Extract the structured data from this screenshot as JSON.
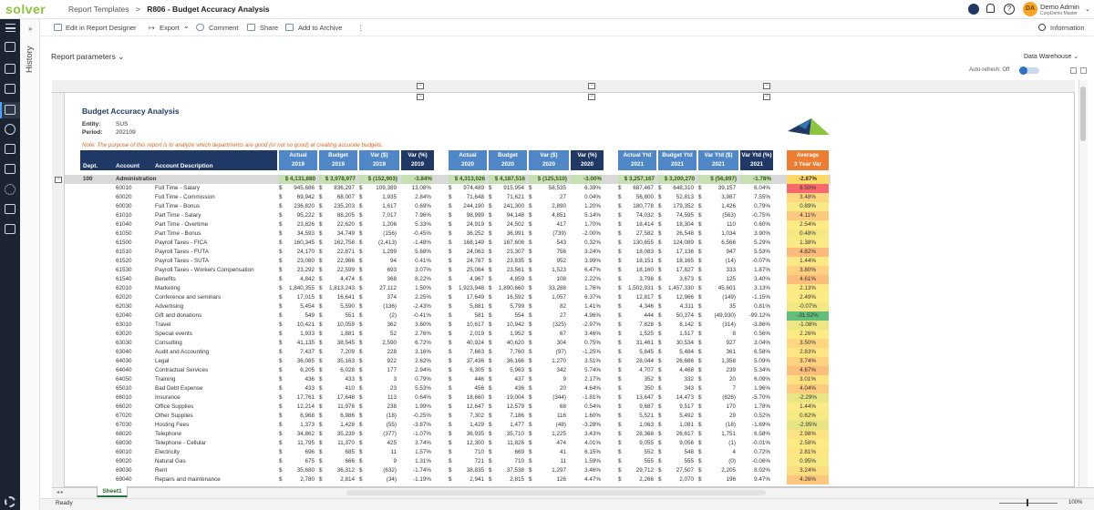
{
  "app": {
    "logo": "solver",
    "crumb_section": "Report Templates",
    "crumb_sep": ">",
    "crumb_title": "R806 - Budget Accuracy Analysis"
  },
  "user": {
    "initials": "DA",
    "name": "Demo Admin",
    "org": "CorpDemo Master"
  },
  "history_label": "History",
  "toolbar": {
    "edit": "Edit in Report Designer",
    "export": "Export",
    "comment": "Comment",
    "share": "Share",
    "archive": "Add to Archive",
    "more": "⋮",
    "information": "Information"
  },
  "params": {
    "label": "Report parameters",
    "datasource": "Data Warehouse",
    "autorefresh": "Auto-refresh: Off"
  },
  "report": {
    "title": "Budget Accuracy Analysis",
    "entity_label": "Entity:",
    "entity": "SUS",
    "period_label": "Period:",
    "period": "202109",
    "note": "Note: The purpose of this report is to analyze which departments are good (or not so good) at creating accurate budgets.",
    "col_dept": "Dept.",
    "col_account": "Account",
    "col_desc": "Account Description",
    "headers": [
      {
        "l1": "Actual",
        "l2": "2019",
        "style": "hl"
      },
      {
        "l1": "Budget",
        "l2": "2019",
        "style": "hl"
      },
      {
        "l1": "Var ($)",
        "l2": "2019",
        "style": "hl"
      },
      {
        "l1": "Var (%)",
        "l2": "2019",
        "style": "hd"
      },
      {
        "l1": "Actual",
        "l2": "2020",
        "style": "hl"
      },
      {
        "l1": "Budget",
        "l2": "2020",
        "style": "hl"
      },
      {
        "l1": "Var ($)",
        "l2": "2020",
        "style": "hl"
      },
      {
        "l1": "Var (%)",
        "l2": "2020",
        "style": "hd"
      },
      {
        "l1": "Actual Ytd",
        "l2": "2021",
        "style": "hl"
      },
      {
        "l1": "Budget Ytd",
        "l2": "2021",
        "style": "hl"
      },
      {
        "l1": "Var Ytd ($)",
        "l2": "2021",
        "style": "hl"
      },
      {
        "l1": "Var Ytd (%)",
        "l2": "2021",
        "style": "hd"
      },
      {
        "l1": "Average",
        "l2": "3 Year Var",
        "style": "ho"
      }
    ],
    "total": {
      "dept": "100",
      "name": "Administration",
      "v": [
        "$ 4,131,880",
        "$ 3,978,977",
        "$ (152,903)",
        "-3.84%",
        "$ 4,313,026",
        "$ 4,187,516",
        "$ (125,510)",
        "-3.00%",
        "$ 3,257,167",
        "$ 3,200,270",
        "$ (56,897)",
        "-1.78%"
      ],
      "avg": "-2.87%"
    },
    "rows": [
      [
        "60010",
        "Full Time - Salary",
        "945,686",
        "836,297",
        "109,389",
        "13.08%",
        "974,489",
        "915,954",
        "58,535",
        "6.39%",
        "687,467",
        "648,310",
        "39,157",
        "6.04%",
        "8.50%"
      ],
      [
        "60020",
        "Full Time - Commission",
        "69,942",
        "68,007",
        "1,935",
        "2.84%",
        "71,648",
        "71,621",
        "27",
        "0.04%",
        "56,800",
        "52,813",
        "3,987",
        "7.55%",
        "3.48%"
      ],
      [
        "60030",
        "Full Time - Bonus",
        "236,820",
        "235,203",
        "1,617",
        "0.69%",
        "244,190",
        "241,300",
        "2,890",
        "1.20%",
        "180,778",
        "179,352",
        "1,426",
        "0.79%",
        "0.89%"
      ],
      [
        "61010",
        "Part Time - Salary",
        "95,222",
        "88,205",
        "7,017",
        "7.96%",
        "98,999",
        "94,148",
        "4,851",
        "5.14%",
        "74,032",
        "74,595",
        "(563)",
        "-0.75%",
        "4.11%"
      ],
      [
        "61040",
        "Part Time - Overtime",
        "23,826",
        "22,620",
        "1,206",
        "5.33%",
        "24,919",
        "24,502",
        "417",
        "1.70%",
        "18,414",
        "18,304",
        "110",
        "0.60%",
        "2.54%"
      ],
      [
        "61050",
        "Part Time - Bonus",
        "34,593",
        "34,749",
        "(156)",
        "-0.45%",
        "36,252",
        "36,991",
        "(739)",
        "-2.00%",
        "27,582",
        "26,548",
        "1,034",
        "3.90%",
        "0.48%"
      ],
      [
        "61500",
        "Payroll Taxes - FICA",
        "160,345",
        "162,758",
        "(2,413)",
        "-1.48%",
        "168,149",
        "167,606",
        "543",
        "0.32%",
        "130,655",
        "124,089",
        "6,566",
        "5.29%",
        "1.38%"
      ],
      [
        "61510",
        "Payroll Taxes - FUTA",
        "24,170",
        "22,871",
        "1,299",
        "5.68%",
        "24,063",
        "23,307",
        "756",
        "3.24%",
        "18,083",
        "17,136",
        "947",
        "5.53%",
        "4.82%"
      ],
      [
        "61520",
        "Payroll Taxes - SUTA",
        "23,080",
        "22,986",
        "94",
        "0.41%",
        "24,787",
        "23,835",
        "952",
        "3.99%",
        "18,151",
        "18,165",
        "(14)",
        "-0.07%",
        "1.44%"
      ],
      [
        "61530",
        "Payroll Taxes - Workers Compensation",
        "23,292",
        "22,599",
        "693",
        "3.07%",
        "25,084",
        "23,561",
        "1,523",
        "6.47%",
        "18,160",
        "17,827",
        "333",
        "1.87%",
        "3.80%"
      ],
      [
        "61540",
        "Benefits",
        "4,842",
        "4,474",
        "368",
        "8.22%",
        "4,967",
        "4,859",
        "108",
        "2.22%",
        "3,798",
        "3,673",
        "125",
        "3.40%",
        "4.61%"
      ],
      [
        "62010",
        "Marketing",
        "1,840,355",
        "1,813,243",
        "27,112",
        "1.50%",
        "1,923,948",
        "1,890,660",
        "33,288",
        "1.76%",
        "1,502,931",
        "1,457,330",
        "45,601",
        "3.13%",
        "2.13%"
      ],
      [
        "62020",
        "Conference and seminars",
        "17,015",
        "16,641",
        "374",
        "2.25%",
        "17,649",
        "16,592",
        "1,057",
        "6.37%",
        "12,817",
        "12,966",
        "(149)",
        "-1.15%",
        "2.49%"
      ],
      [
        "62030",
        "Advertising",
        "5,454",
        "5,590",
        "(136)",
        "-2.43%",
        "5,881",
        "5,799",
        "82",
        "1.41%",
        "4,346",
        "4,311",
        "35",
        "0.81%",
        "-0.07%"
      ],
      [
        "62040",
        "Gift and donations",
        "549",
        "551",
        "(2)",
        "-0.41%",
        "581",
        "554",
        "27",
        "4.96%",
        "444",
        "50,374",
        "(49,930)",
        "-99.12%",
        "-31.52%"
      ],
      [
        "63010",
        "Travel",
        "10,421",
        "10,059",
        "362",
        "3.60%",
        "10,617",
        "10,942",
        "(325)",
        "-2.97%",
        "7,828",
        "8,142",
        "(314)",
        "-3.86%",
        "-1.08%"
      ],
      [
        "63020",
        "Special events",
        "1,933",
        "1,881",
        "52",
        "2.76%",
        "2,019",
        "1,952",
        "67",
        "3.46%",
        "1,525",
        "1,517",
        "8",
        "0.56%",
        "2.26%"
      ],
      [
        "63030",
        "Consulting",
        "41,135",
        "38,545",
        "2,590",
        "6.72%",
        "40,924",
        "40,620",
        "304",
        "0.75%",
        "31,461",
        "30,534",
        "927",
        "3.04%",
        "3.50%"
      ],
      [
        "63040",
        "Audit and Accounting",
        "7,437",
        "7,209",
        "228",
        "3.16%",
        "7,663",
        "7,760",
        "(97)",
        "-1.25%",
        "5,845",
        "5,484",
        "361",
        "6.58%",
        "2.83%"
      ],
      [
        "64030",
        "Legal",
        "36,085",
        "35,163",
        "922",
        "2.62%",
        "37,436",
        "36,166",
        "1,270",
        "3.51%",
        "28,044",
        "26,686",
        "1,358",
        "5.09%",
        "3.74%"
      ],
      [
        "64040",
        "Contractual Services",
        "6,205",
        "6,028",
        "177",
        "2.94%",
        "6,305",
        "5,963",
        "342",
        "5.74%",
        "4,707",
        "4,468",
        "239",
        "5.34%",
        "4.67%"
      ],
      [
        "64050",
        "Training",
        "436",
        "433",
        "3",
        "0.79%",
        "446",
        "437",
        "9",
        "2.17%",
        "352",
        "332",
        "20",
        "6.09%",
        "3.01%"
      ],
      [
        "65010",
        "Bad Debt Expense",
        "433",
        "410",
        "23",
        "5.53%",
        "456",
        "436",
        "20",
        "4.64%",
        "350",
        "343",
        "7",
        "1.96%",
        "4.04%"
      ],
      [
        "66010",
        "Insurance",
        "17,761",
        "17,648",
        "113",
        "0.64%",
        "18,660",
        "19,004",
        "(344)",
        "-1.81%",
        "13,647",
        "14,473",
        "(826)",
        "-5.70%",
        "-2.29%"
      ],
      [
        "66020",
        "Office Supplies",
        "12,214",
        "11,976",
        "238",
        "1.99%",
        "12,647",
        "12,579",
        "68",
        "0.54%",
        "9,687",
        "9,517",
        "170",
        "1.78%",
        "1.44%"
      ],
      [
        "67020",
        "Other Supplies",
        "6,968",
        "6,986",
        "(18)",
        "-0.25%",
        "7,302",
        "7,186",
        "116",
        "1.60%",
        "5,521",
        "5,492",
        "29",
        "0.52%",
        "0.62%"
      ],
      [
        "67030",
        "Hosting Fees",
        "1,373",
        "1,428",
        "(55)",
        "-3.87%",
        "1,429",
        "1,477",
        "(48)",
        "-3.28%",
        "1,063",
        "1,081",
        "(18)",
        "-1.69%",
        "-2.95%"
      ],
      [
        "68020",
        "Telephone",
        "34,862",
        "35,239",
        "(377)",
        "-1.07%",
        "36,935",
        "35,710",
        "1,225",
        "3.43%",
        "28,368",
        "26,617",
        "1,751",
        "6.58%",
        "2.98%"
      ],
      [
        "68030",
        "Telephone - Cellular",
        "11,795",
        "11,370",
        "425",
        "3.74%",
        "12,300",
        "11,826",
        "474",
        "4.01%",
        "9,055",
        "9,056",
        "(1)",
        "-0.01%",
        "2.58%"
      ],
      [
        "69010",
        "Electricity",
        "696",
        "685",
        "11",
        "1.57%",
        "710",
        "669",
        "41",
        "6.15%",
        "552",
        "548",
        "4",
        "0.72%",
        "2.81%"
      ],
      [
        "69020",
        "Natural Gas",
        "675",
        "666",
        "9",
        "1.31%",
        "721",
        "710",
        "11",
        "1.59%",
        "555",
        "555",
        "(0)",
        "-0.06%",
        "0.95%"
      ],
      [
        "69030",
        "Rent",
        "35,680",
        "36,312",
        "(632)",
        "-1.74%",
        "38,835",
        "37,538",
        "1,297",
        "3.46%",
        "29,712",
        "27,507",
        "2,205",
        "8.02%",
        "3.24%"
      ],
      [
        "69040",
        "Repairs and maintenance",
        "2,780",
        "2,814",
        "(34)",
        "-1.19%",
        "2,941",
        "2,815",
        "126",
        "4.47%",
        "2,266",
        "2,070",
        "196",
        "9.47%",
        "4.26%"
      ]
    ]
  },
  "colors": {
    "heat_min": "#63be7b",
    "heat_mid": "#ffeb84",
    "heat_max": "#f8696b"
  },
  "sheet_tab": "Sheet1",
  "status": {
    "ready": "Ready",
    "zoom": "100%"
  }
}
